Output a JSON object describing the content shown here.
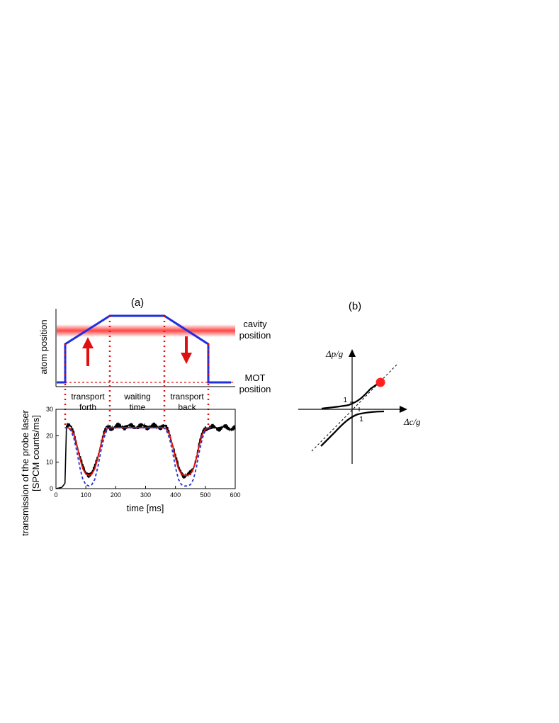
{
  "figure": {
    "panel_a": {
      "label": "(a)",
      "upper": {
        "ylabel": "atom position",
        "cavity_label_line1": "cavity",
        "cavity_label_line2": "position",
        "mot_label_line1": "MOT",
        "mot_label_line2": "position"
      },
      "lower": {
        "ylabel_line1": "transmission of the probe laser",
        "ylabel_line2": "[SPCM counts/ms]",
        "xlabel": "time [ms]",
        "x_ticks": [
          "0",
          "100",
          "200",
          "300",
          "400",
          "500",
          "600"
        ],
        "y_ticks": [
          "0",
          "10",
          "20",
          "30"
        ],
        "phase_labels": [
          {
            "line1": "transport",
            "line2": "forth"
          },
          {
            "line1": "waiting",
            "line2": "time"
          },
          {
            "line1": "transport",
            "line2": "back"
          }
        ]
      }
    },
    "panel_b": {
      "label": "(b)",
      "y_axis_label": "Δp/g",
      "x_axis_label": "Δc/g",
      "tick_y": "1",
      "tick_x": "1"
    },
    "colors": {
      "blue_trajectory": "#1f2fe0",
      "red_fit": "#e01010",
      "blue_dashed": "#2233cc",
      "cavity_band": "#ff3b3b",
      "marker": "#ff2020"
    }
  },
  "chart_data": [
    {
      "type": "line",
      "title": "",
      "xlabel": "",
      "ylabel": "atom position",
      "series": [
        {
          "x": [
            0,
            30,
            30,
            180,
            365,
            520,
            520,
            600
          ],
          "y": [
            0,
            0,
            0.55,
            0.95,
            0.95,
            0.55,
            0,
            0
          ]
        }
      ]
    },
    {
      "type": "line",
      "xlabel": "time [ms]",
      "ylabel": "transmission of the probe laser [SPCM counts/ms]",
      "xlim": [
        0,
        600
      ],
      "ylim": [
        0,
        30
      ],
      "series": [
        {
          "color": "#000000",
          "x": [
            0,
            20,
            30,
            35,
            40,
            50,
            60,
            70,
            80,
            90,
            100,
            110,
            120,
            130,
            140,
            150,
            160,
            170,
            180,
            200,
            250,
            300,
            350,
            360,
            370,
            380,
            390,
            400,
            410,
            420,
            430,
            440,
            450,
            460,
            470,
            480,
            490,
            500,
            510,
            520,
            560,
            600
          ],
          "y": [
            0,
            0.5,
            2,
            23,
            24,
            23,
            21,
            17,
            12,
            8,
            6,
            5.5,
            6,
            8,
            12,
            17,
            21,
            23,
            23,
            23.5,
            23.5,
            23.5,
            23.5,
            23.5,
            23,
            21,
            17,
            12,
            8,
            6,
            5,
            5,
            5.5,
            8,
            12,
            17,
            21,
            23,
            23,
            23,
            23,
            23
          ]
        },
        {
          "color": "#e01010",
          "x": [
            30,
            40,
            50,
            60,
            70,
            80,
            90,
            100,
            110,
            120,
            130,
            140,
            150,
            160,
            170,
            180,
            360,
            370,
            380,
            390,
            400,
            410,
            420,
            430,
            440,
            450,
            460,
            470,
            480,
            490,
            500,
            510,
            520
          ],
          "y": [
            23,
            23,
            22.5,
            20.5,
            16.5,
            11.5,
            7.5,
            5.5,
            5,
            5.5,
            7.5,
            11.5,
            16.5,
            20.5,
            22.5,
            23,
            23,
            22.5,
            20.5,
            16.5,
            11.5,
            7.5,
            5.5,
            5,
            5,
            5.5,
            7.5,
            11.5,
            16.5,
            20.5,
            22.5,
            23,
            23
          ]
        },
        {
          "color": "#2233cc",
          "x": [
            30,
            40,
            50,
            60,
            70,
            80,
            90,
            100,
            110,
            120,
            130,
            140,
            150,
            160,
            170,
            180,
            360,
            370,
            380,
            390,
            400,
            410,
            420,
            430,
            440,
            450,
            460,
            470,
            480,
            490,
            500,
            510,
            520
          ],
          "y": [
            23,
            23,
            22,
            19,
            14,
            8,
            3.5,
            1.5,
            1,
            1.5,
            3.5,
            8,
            14,
            19,
            22,
            23,
            23,
            22,
            19,
            14,
            8,
            3.5,
            1.5,
            1,
            1,
            1.5,
            3.5,
            8,
            14,
            19,
            22,
            23,
            23
          ]
        }
      ]
    }
  ]
}
